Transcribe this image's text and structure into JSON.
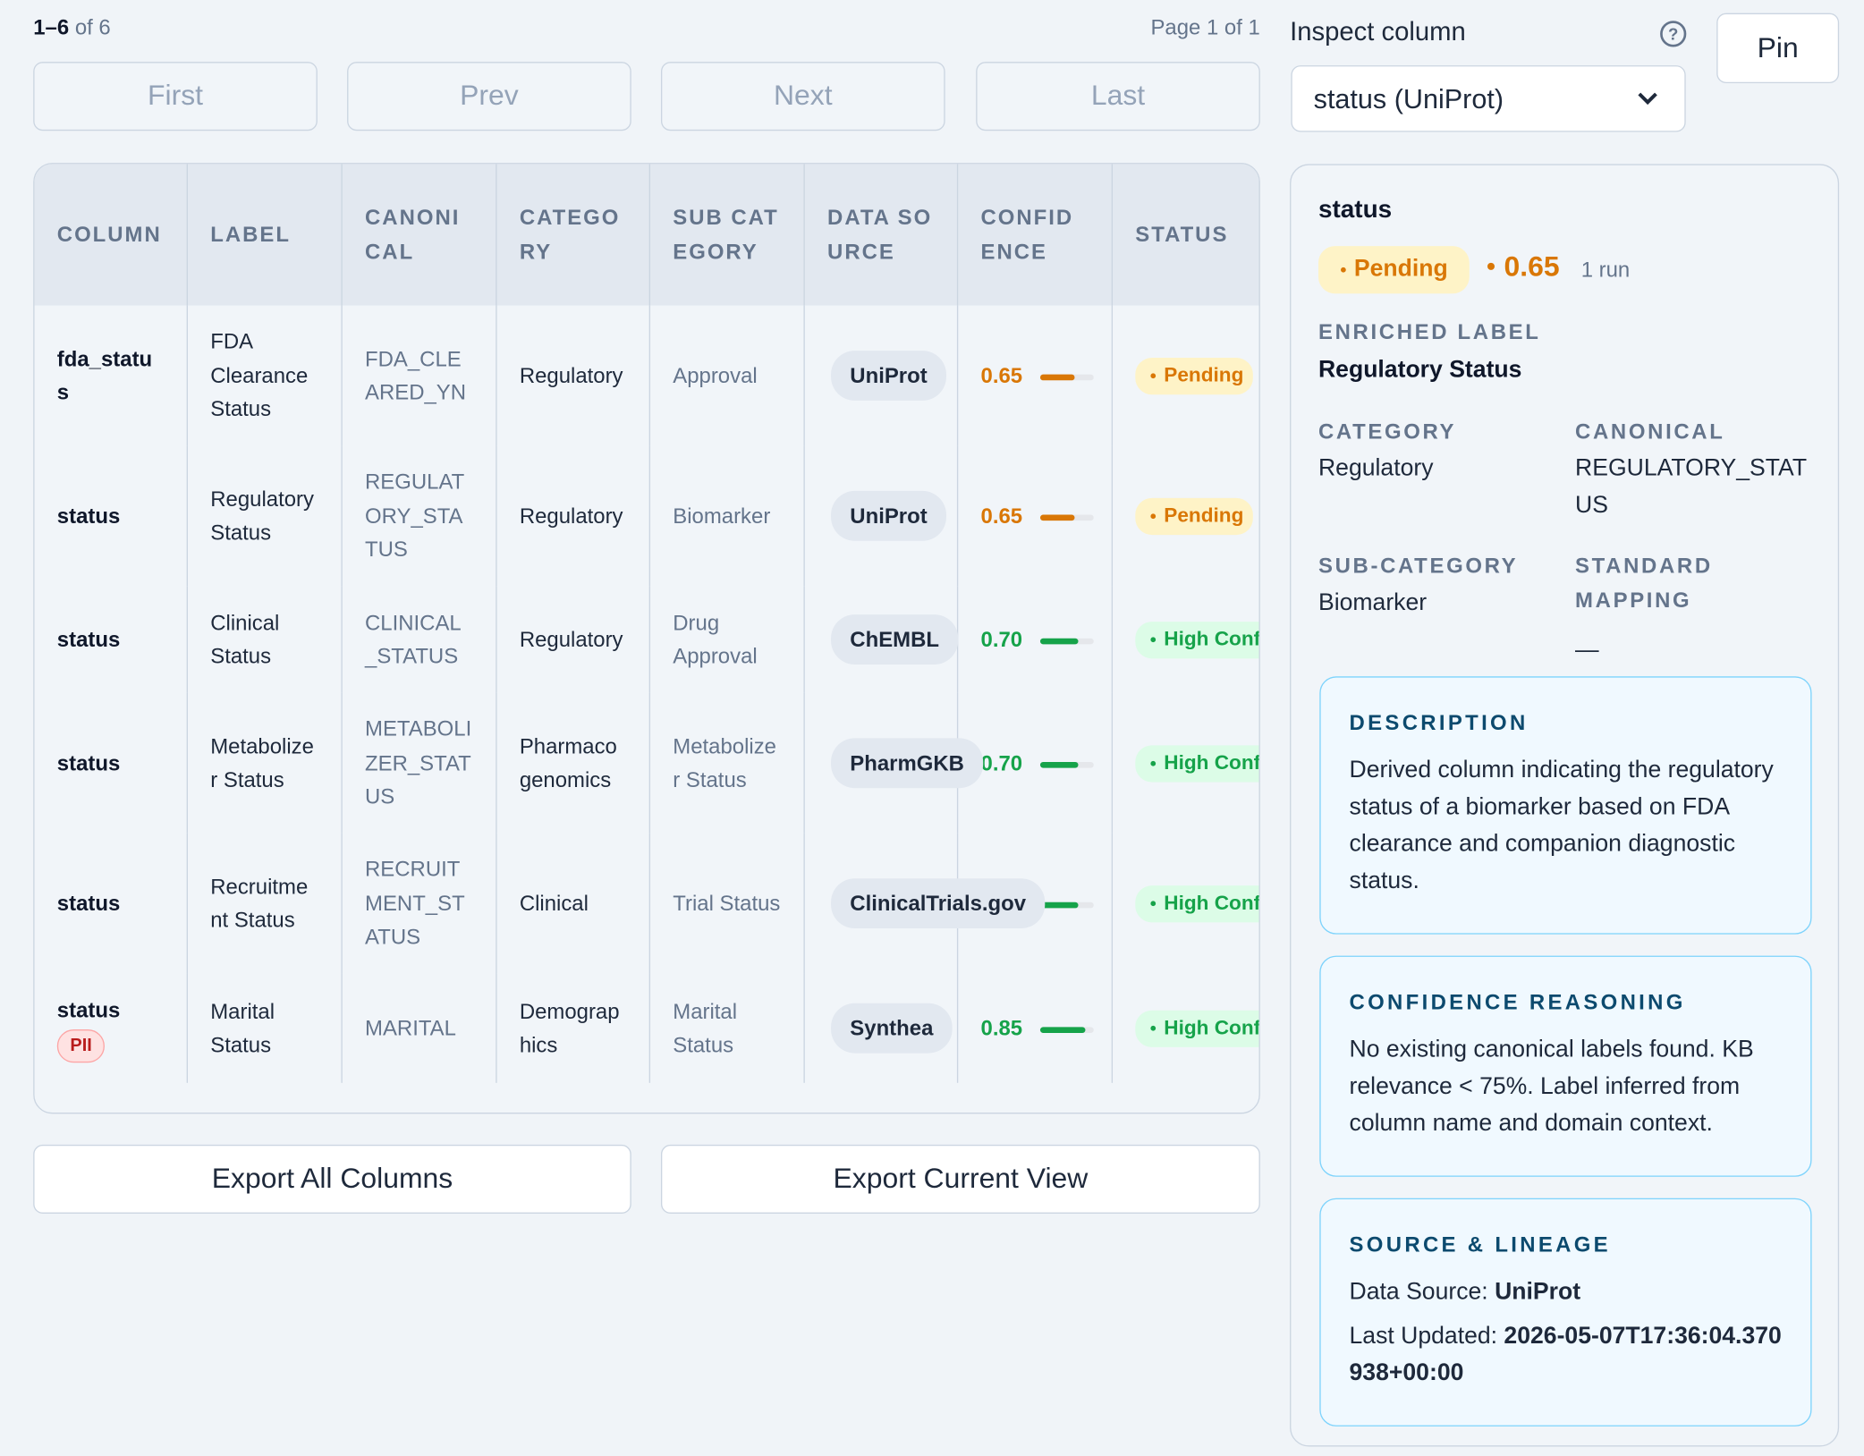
{
  "header": {
    "range": "1–6",
    "range_suffix": "of 6",
    "page": "Page 1 of 1"
  },
  "pagination": [
    "First",
    "Prev",
    "Next",
    "Last"
  ],
  "table": {
    "columns": [
      "COLUMN",
      "LABEL",
      "CANONICAL",
      "CATEGORY",
      "SUB CATEGORY",
      "DATA SOURCE",
      "CONFIDENCE",
      "STATUS"
    ],
    "rows": [
      {
        "column": "fda_status",
        "label": "FDA Clearance Status",
        "canonical": "FDA_CLEARED_YN",
        "category": "Regulatory",
        "subcategory": "Approval",
        "source": "UniProt",
        "confidence": "0.65",
        "status": "Pending",
        "color": "#d97706",
        "badge_bg": "#fef3c7"
      },
      {
        "column": "status",
        "label": "Regulatory Status",
        "canonical": "REGULATORY_STATUS",
        "category": "Regulatory",
        "subcategory": "Biomarker",
        "source": "UniProt",
        "confidence": "0.65",
        "status": "Pending",
        "color": "#d97706",
        "badge_bg": "#fef3c7"
      },
      {
        "column": "status",
        "label": "Clinical Status",
        "canonical": "CLINICAL_STATUS",
        "category": "Regulatory",
        "subcategory": "Drug Approval",
        "source": "ChEMBL",
        "confidence": "0.70",
        "status": "High Confidence",
        "color": "#16a34a",
        "badge_bg": "#dcfce7"
      },
      {
        "column": "status",
        "label": "Metabolizer Status",
        "canonical": "METABOLIZER_STATUS",
        "category": "Pharmacogenomics",
        "subcategory": "Metabolizer Status",
        "source": "PharmGKB",
        "confidence": "0.70",
        "status": "High Confidence",
        "color": "#16a34a",
        "badge_bg": "#dcfce7"
      },
      {
        "column": "status",
        "label": "Recruitment Status",
        "canonical": "RECRUITMENT_STATUS",
        "category": "Clinical",
        "subcategory": "Trial Status",
        "source": "ClinicalTrials.gov",
        "confidence": "0.70",
        "status": "High Confidence",
        "color": "#16a34a",
        "badge_bg": "#dcfce7"
      },
      {
        "column": "status",
        "badge": "PII",
        "label": "Marital Status",
        "canonical": "MARITAL",
        "category": "Demographics",
        "subcategory": "Marital Status",
        "source": "Synthea",
        "confidence": "0.85",
        "status": "High Confidence",
        "color": "#16a34a",
        "badge_bg": "#dcfce7"
      }
    ]
  },
  "export": [
    "Export All Columns",
    "Export Current View"
  ],
  "inspector": {
    "label": "Inspect column",
    "selected": "status (UniProt)",
    "pin": "Pin",
    "title": "status",
    "status": "Pending",
    "confidence": "0.65",
    "runs": "1 run",
    "enriched_heading": "ENRICHED LABEL",
    "enriched_label": "Regulatory Status",
    "fields": [
      {
        "label": "CATEGORY",
        "value": "Regulatory"
      },
      {
        "label": "CANONICAL",
        "value": "REGULATORY_STATUS"
      },
      {
        "label": "SUB-CATEGORY",
        "value": "Biomarker"
      },
      {
        "label": "STANDARD MAPPING",
        "value": "—"
      }
    ],
    "description": {
      "heading": "DESCRIPTION",
      "text": "Derived column indicating the regulatory status of a biomarker based on FDA clearance and companion diagnostic status."
    },
    "reasoning": {
      "heading": "CONFIDENCE REASONING",
      "text": "No existing canonical labels found. KB relevance < 75%. Label inferred from column name and domain context."
    },
    "lineage": {
      "heading": "SOURCE & LINEAGE",
      "source_label": "Data Source:",
      "source": "UniProt",
      "updated_label": "Last Updated:",
      "updated": "2026-05-07T17:36:04.370938+00:00"
    }
  }
}
